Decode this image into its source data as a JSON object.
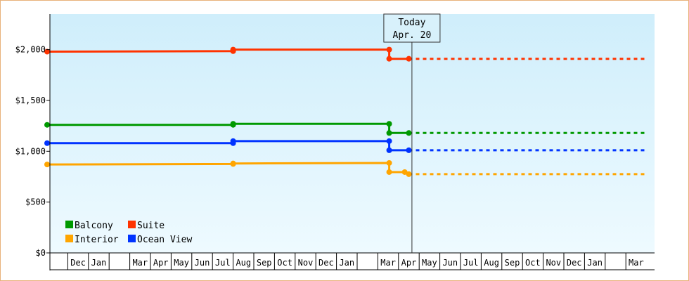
{
  "chart_data": {
    "type": "line",
    "title": "",
    "xlabel": "",
    "ylabel": "",
    "y_ticks": [
      "$0",
      "$500",
      "$1,000",
      "$1,500",
      "$2,000"
    ],
    "y_tick_values": [
      0,
      500,
      1000,
      1500,
      2000
    ],
    "ylim": [
      0,
      2350
    ],
    "x_month_labels": [
      "",
      "Dec",
      "Jan",
      "",
      "Mar",
      "Apr",
      "May",
      "Jun",
      "Jul",
      "Aug",
      "Sep",
      "Oct",
      "Nov",
      "Dec",
      "Jan",
      "",
      "Mar",
      "Apr",
      "May",
      "Jun",
      "Jul",
      "Aug",
      "Sep",
      "Oct",
      "Nov",
      "Dec",
      "Jan",
      "",
      "Mar"
    ],
    "today_marker": {
      "line1": "Today",
      "line2": "Apr. 20",
      "month_index": 17.65
    },
    "legend_position": "bottom-left",
    "series": [
      {
        "name": "Suite",
        "color": "#ff3300",
        "points": [
          [
            0,
            1980
          ],
          [
            9,
            1985
          ],
          [
            9,
            2000
          ],
          [
            16.55,
            2000
          ],
          [
            16.55,
            1910
          ],
          [
            17.5,
            1910
          ]
        ],
        "projection": [
          [
            17.5,
            1910
          ],
          [
            29,
            1910
          ]
        ]
      },
      {
        "name": "Balcony",
        "color": "#009900",
        "points": [
          [
            0,
            1260
          ],
          [
            9,
            1260
          ],
          [
            9,
            1270
          ],
          [
            16.55,
            1270
          ],
          [
            16.55,
            1180
          ],
          [
            17.5,
            1180
          ]
        ],
        "projection": [
          [
            17.5,
            1180
          ],
          [
            29,
            1180
          ]
        ]
      },
      {
        "name": "Ocean View",
        "color": "#0033ff",
        "points": [
          [
            0,
            1080
          ],
          [
            9,
            1080
          ],
          [
            9,
            1100
          ],
          [
            16.55,
            1100
          ],
          [
            16.55,
            1010
          ],
          [
            17.5,
            1010
          ]
        ],
        "projection": [
          [
            17.5,
            1010
          ],
          [
            29,
            1010
          ]
        ]
      },
      {
        "name": "Interior",
        "color": "#ffa500",
        "points": [
          [
            0,
            870
          ],
          [
            9,
            875
          ],
          [
            9,
            880
          ],
          [
            16.55,
            885
          ],
          [
            16.55,
            795
          ],
          [
            17.3,
            795
          ],
          [
            17.5,
            775
          ]
        ],
        "projection": [
          [
            17.5,
            775
          ],
          [
            29,
            775
          ]
        ]
      }
    ],
    "legend_order": [
      "Balcony",
      "Suite",
      "Interior",
      "Ocean View"
    ]
  }
}
